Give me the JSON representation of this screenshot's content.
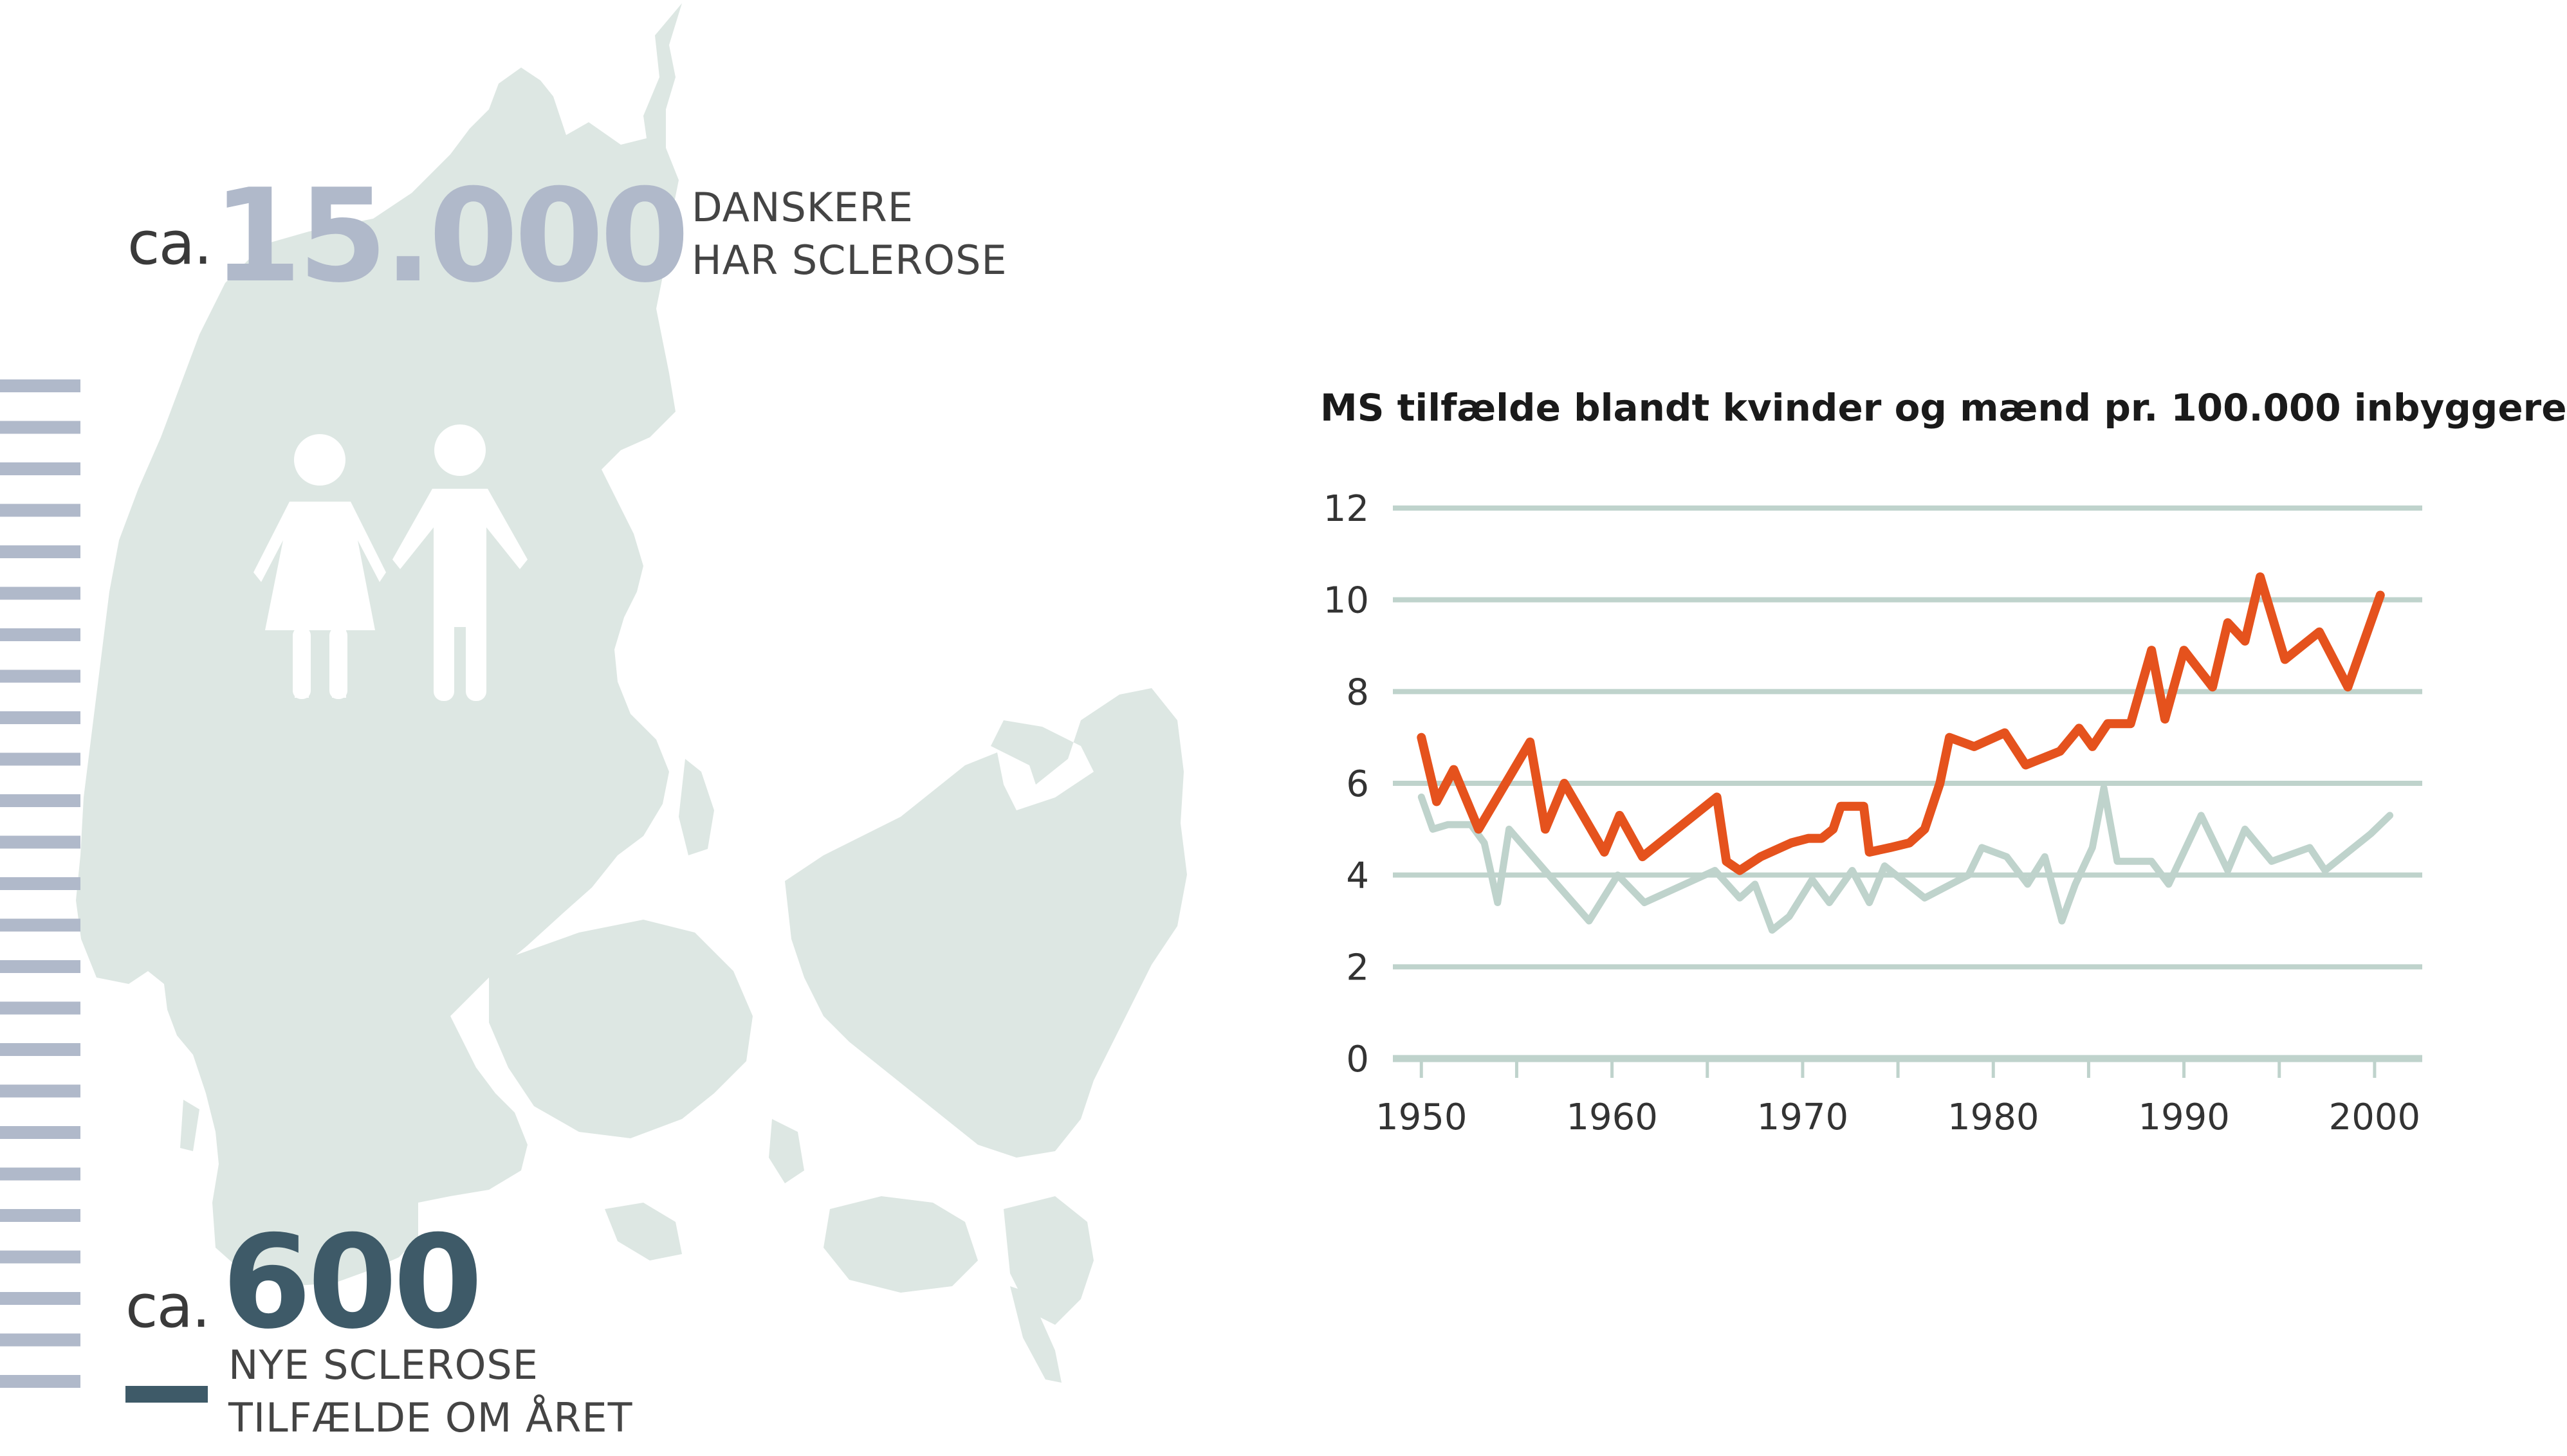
{
  "colors": {
    "map": "#dde7e3",
    "light_figure": "#b0b9ca",
    "dark_figure": "#3e5a68",
    "grid": "#bfd3cc",
    "women": "#e5521d",
    "men": "#bfd3cc",
    "text_gray": "#444444"
  },
  "icons": [
    "woman-icon",
    "man-icon"
  ],
  "stats": {
    "total": {
      "prefix": "ca.",
      "number": "15.000",
      "line1": "DANSKERE",
      "line2": "HAR SCLEROSE"
    },
    "new": {
      "prefix": "ca.",
      "number": "600",
      "line1": "NYE SCLEROSE",
      "line2": "TILFÆLDE OM ÅRET"
    }
  },
  "chart_data": {
    "type": "line",
    "title": "MS tilfælde blandt kvinder og mænd pr. 100.000 inbyggere",
    "xlim": [
      1948,
      2002.5
    ],
    "ylim": [
      0,
      12
    ],
    "yticks": [
      "0",
      "2",
      "4",
      "6",
      "8",
      "10",
      "12"
    ],
    "xticks": [
      "1950",
      "1960",
      "1970",
      "1980",
      "1990",
      "2000"
    ],
    "grid": true,
    "series": [
      {
        "color": "#e5521d",
        "x": [
          1950,
          1950.8,
          1951.7,
          1953,
          1955.7,
          1956.5,
          1957.5,
          1959.6,
          1960.4,
          1961.6,
          1965.5,
          1966,
          1966.7,
          1967.8,
          1969.4,
          1970.3,
          1971,
          1971.6,
          1972,
          1973.2,
          1973.5,
          1974.6,
          1975.6,
          1976.4,
          1977.2,
          1977.7,
          1979,
          1980.6,
          1981.7,
          1983.5,
          1984.5,
          1985.2,
          1986,
          1987.2,
          1988.3,
          1989,
          1990,
          1991.5,
          1992.3,
          1993.2,
          1994,
          1995.3,
          1997.1,
          1998.6,
          2000.3
        ],
        "values": [
          7.0,
          5.6,
          6.3,
          5.0,
          6.9,
          5.0,
          6.0,
          4.5,
          5.3,
          4.4,
          5.7,
          4.3,
          4.1,
          4.4,
          4.7,
          4.8,
          4.8,
          5.0,
          5.5,
          5.5,
          4.5,
          4.6,
          4.7,
          5.0,
          6.0,
          7.0,
          6.8,
          7.1,
          6.4,
          6.7,
          7.2,
          6.8,
          7.3,
          7.3,
          8.9,
          7.4,
          8.9,
          8.1,
          9.5,
          9.1,
          10.5,
          8.7,
          9.3,
          8.1,
          10.1
        ]
      },
      {
        "color": "#bfd3cc",
        "x": [
          1950,
          1950.6,
          1951.4,
          1952.6,
          1953.3,
          1954,
          1954.6,
          1956.9,
          1958.8,
          1960.3,
          1961.7,
          1965.4,
          1966.7,
          1967.5,
          1968.4,
          1969.3,
          1970.2,
          1970.5,
          1971.4,
          1972.6,
          1973.5,
          1974.3,
          1975.2,
          1976.4,
          1978.7,
          1979.4,
          1980.7,
          1981.8,
          1982.7,
          1983.6,
          1984.3,
          1985.2,
          1985.8,
          1986.5,
          1988.3,
          1989.2,
          1990.9,
          1992.3,
          1993.2,
          1994.6,
          1996.6,
          1997.4,
          1999.8,
          2000.8
        ],
        "values": [
          5.7,
          5.0,
          5.1,
          5.1,
          4.7,
          3.4,
          5.0,
          3.9,
          3.0,
          4.0,
          3.4,
          4.1,
          3.5,
          3.8,
          2.8,
          3.1,
          3.7,
          3.9,
          3.4,
          4.1,
          3.4,
          4.2,
          3.9,
          3.5,
          4.0,
          4.6,
          4.4,
          3.8,
          4.4,
          3.0,
          3.8,
          4.6,
          5.9,
          4.3,
          4.3,
          3.8,
          5.3,
          4.1,
          5.0,
          4.3,
          4.6,
          4.1,
          4.9,
          5.3
        ]
      }
    ]
  }
}
